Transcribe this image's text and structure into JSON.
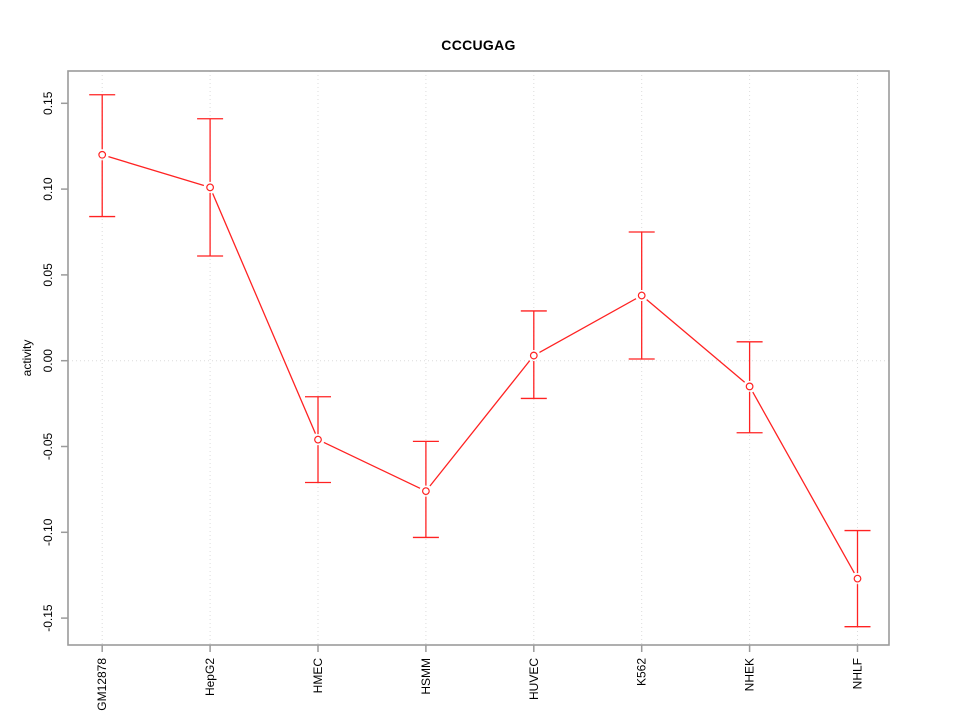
{
  "figure": {
    "title": "CCCUGAG",
    "ylabel": "activity"
  },
  "chart_data": {
    "type": "line",
    "title": "CCCUGAG",
    "xlabel": "",
    "ylabel": "activity",
    "categories": [
      "GM12878",
      "HepG2",
      "HMEC",
      "HSMM",
      "HUVEC",
      "K562",
      "NHEK",
      "NHLF"
    ],
    "series": [
      {
        "name": "activity",
        "values": [
          0.12,
          0.101,
          -0.046,
          -0.076,
          0.003,
          0.038,
          -0.015,
          -0.127
        ],
        "err_low": [
          0.084,
          0.061,
          -0.071,
          -0.103,
          -0.022,
          0.001,
          -0.042,
          -0.155
        ],
        "err_high": [
          0.155,
          0.141,
          -0.021,
          -0.047,
          0.029,
          0.075,
          0.011,
          -0.099
        ]
      }
    ],
    "ylim": [
      -0.166,
      0.169
    ],
    "yticks": [
      0.15,
      0.1,
      0.05,
      0.0,
      -0.05,
      -0.1,
      -0.15
    ],
    "marker": "open-circle",
    "error_bars": true,
    "grid": "dotted vertical line at each category; dotted horizontal line at y=0",
    "legend": "none",
    "colors": {
      "series": "#ff2222",
      "axis": "#9b9b9b",
      "grid": "#dcdcdc",
      "text": "#000000",
      "background": "#ffffff"
    }
  }
}
